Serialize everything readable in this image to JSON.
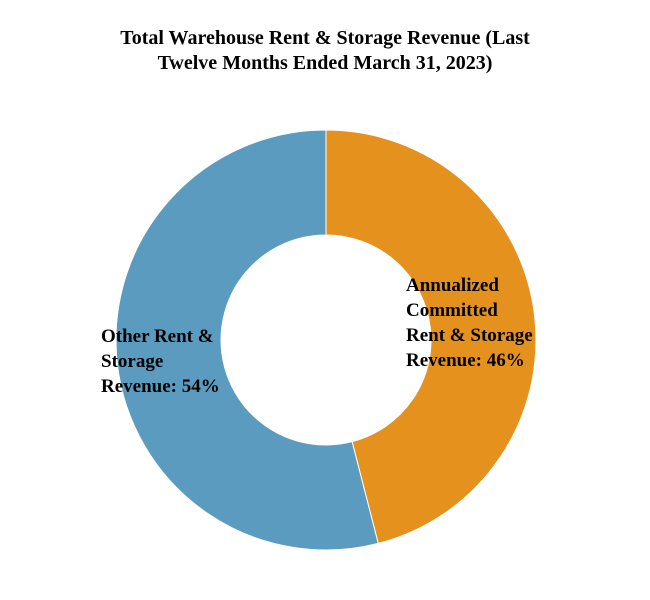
{
  "chart_data": {
    "type": "pie",
    "variant": "donut",
    "title_lines": [
      "Total Warehouse Rent & Storage Revenue (Last",
      "Twelve Months Ended March 31, 2023)"
    ],
    "slices": [
      {
        "label": "Annualized Committed Rent & Storage Revenue",
        "value": 46,
        "label_lines": [
          "Annualized",
          "Committed",
          "Rent & Storage",
          "Revenue: 46%"
        ],
        "color": "#E5911E"
      },
      {
        "label": "Other Rent & Storage Revenue",
        "value": 54,
        "label_lines": [
          "Other Rent &",
          "Storage",
          "Revenue: 54%"
        ],
        "color": "#5A9BBF"
      }
    ],
    "start_angle": "12 o'clock",
    "direction": "clockwise",
    "legend": "none"
  }
}
